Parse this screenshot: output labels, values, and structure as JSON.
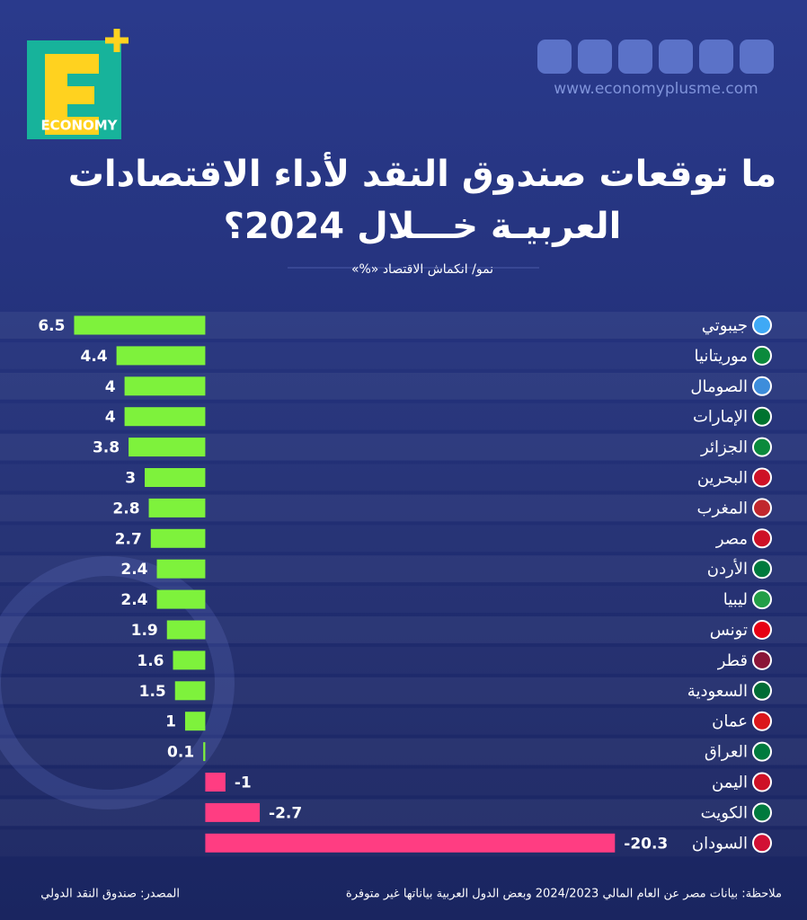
{
  "brand": {
    "logo": "ECONOMY",
    "website": "www.economyplusme.com"
  },
  "chart_data": {
    "type": "bar",
    "orientation": "horizontal",
    "title": [
      "ما توقعات صندوق النقد لأداء الاقتصادات",
      "العربيـة خـــلال 2024؟"
    ],
    "subtitle": "نمو/ انكماش الاقتصاد «%»",
    "categories": [
      "جيبوتي",
      "موريتانيا",
      "الصومال",
      "الإمارات",
      "الجزائر",
      "البحرين",
      "المغرب",
      "مصر",
      "الأردن",
      "ليبيا",
      "تونس",
      "قطر",
      "السعودية",
      "عمان",
      "العراق",
      "اليمن",
      "الكويت",
      "السودان"
    ],
    "values": [
      6.5,
      4.4,
      4,
      4,
      3.8,
      3,
      2.8,
      2.7,
      2.4,
      2.4,
      1.9,
      1.6,
      1.5,
      1,
      0.1,
      -1,
      -2.7,
      -20.3
    ],
    "colors": {
      "positive": "#7ef23c",
      "negative": "#ff3d82"
    },
    "xlim": [
      7.5,
      -21
    ],
    "note": "ملاحظة: بيانات مصر عن العام المالي 2024/2023 وبعض الدول العربية بياناتها غير متوفرة",
    "source": "المصدر: صندوق النقد الدولي"
  }
}
